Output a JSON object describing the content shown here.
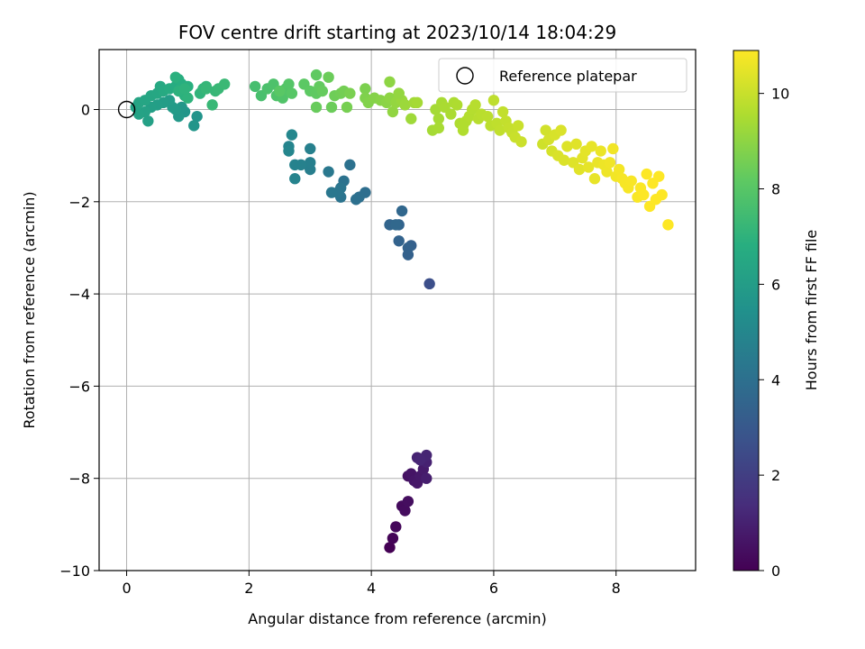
{
  "chart_data": {
    "type": "scatter",
    "title": "FOV centre drift starting at 2023/10/14 18:04:29",
    "xlabel": "Angular distance from reference (arcmin)",
    "ylabel": "Rotation from reference (arcmin)",
    "xlim": [
      -0.45,
      9.3
    ],
    "ylim": [
      -10.0,
      1.3
    ],
    "xticks": [
      0,
      2,
      4,
      6,
      8
    ],
    "yticks": [
      -10,
      -8,
      -6,
      -4,
      -2,
      0
    ],
    "xtick_labels": [
      "0",
      "2",
      "4",
      "6",
      "8"
    ],
    "ytick_labels": [
      "−10",
      "−8",
      "−6",
      "−4",
      "−2",
      "0"
    ],
    "grid": true,
    "legend": {
      "position": "upper-right",
      "entries": [
        "Reference platepar"
      ]
    },
    "reference_point": {
      "x": 0.0,
      "y": 0.0
    },
    "colorbar": {
      "label": "Hours from first FF file",
      "range": [
        0,
        10.9
      ],
      "ticks": [
        0,
        2,
        4,
        6,
        8,
        10
      ],
      "tick_labels": [
        "0",
        "2",
        "4",
        "6",
        "8",
        "10"
      ],
      "colormap": "viridis"
    },
    "series": [
      {
        "points": [
          [
            4.3,
            -9.5,
            0.0
          ],
          [
            4.35,
            -9.3,
            0.1
          ],
          [
            4.4,
            -9.05,
            0.2
          ],
          [
            4.5,
            -8.6,
            0.3
          ],
          [
            4.55,
            -8.7,
            0.35
          ],
          [
            4.6,
            -8.5,
            0.4
          ],
          [
            4.6,
            -7.95,
            0.5
          ],
          [
            4.65,
            -7.9,
            0.6
          ],
          [
            4.7,
            -8.05,
            0.65
          ],
          [
            4.75,
            -8.1,
            0.7
          ],
          [
            4.8,
            -7.95,
            0.75
          ],
          [
            4.85,
            -7.8,
            0.8
          ],
          [
            4.9,
            -8.0,
            0.9
          ],
          [
            4.9,
            -7.65,
            1.0
          ],
          [
            4.75,
            -7.55,
            1.05
          ],
          [
            4.9,
            -7.5,
            1.1
          ],
          [
            4.8,
            -7.6,
            1.15
          ],
          [
            4.95,
            -3.78,
            2.6
          ],
          [
            4.65,
            -2.95,
            3.3
          ],
          [
            4.6,
            -3.15,
            3.35
          ],
          [
            4.6,
            -3.0,
            3.4
          ],
          [
            4.45,
            -2.85,
            3.45
          ],
          [
            4.45,
            -2.5,
            3.5
          ],
          [
            4.3,
            -2.5,
            3.55
          ],
          [
            4.5,
            -2.2,
            3.6
          ],
          [
            4.4,
            -2.5,
            3.65
          ],
          [
            3.9,
            -1.8,
            3.9
          ],
          [
            3.8,
            -1.9,
            3.95
          ],
          [
            3.75,
            -1.95,
            4.0
          ],
          [
            3.65,
            -1.2,
            4.05
          ],
          [
            3.55,
            -1.55,
            4.1
          ],
          [
            3.5,
            -1.9,
            4.15
          ],
          [
            3.5,
            -1.7,
            4.2
          ],
          [
            3.45,
            -1.8,
            4.25
          ],
          [
            3.35,
            -1.8,
            4.3
          ],
          [
            3.3,
            -1.35,
            4.35
          ],
          [
            3.0,
            -1.3,
            4.6
          ],
          [
            3.0,
            -1.15,
            4.65
          ],
          [
            3.0,
            -0.85,
            4.7
          ],
          [
            2.85,
            -1.2,
            4.75
          ],
          [
            2.75,
            -1.2,
            4.8
          ],
          [
            2.75,
            -1.5,
            4.85
          ],
          [
            2.65,
            -0.8,
            4.9
          ],
          [
            2.65,
            -0.9,
            4.95
          ],
          [
            2.7,
            -0.55,
            5.0
          ],
          [
            1.15,
            -0.15,
            5.6
          ],
          [
            1.1,
            -0.35,
            5.65
          ],
          [
            0.95,
            -0.05,
            5.7
          ],
          [
            0.9,
            0.05,
            5.75
          ],
          [
            0.85,
            -0.15,
            5.8
          ],
          [
            0.8,
            0.0,
            5.85
          ],
          [
            0.75,
            0.05,
            5.9
          ],
          [
            0.7,
            0.2,
            5.95
          ],
          [
            0.6,
            0.15,
            6.0
          ],
          [
            0.5,
            0.1,
            6.05
          ],
          [
            0.4,
            0.05,
            6.1
          ],
          [
            0.35,
            -0.25,
            6.15
          ],
          [
            0.3,
            -0.05,
            6.2
          ],
          [
            0.2,
            -0.1,
            6.25
          ],
          [
            0.15,
            0.05,
            6.3
          ],
          [
            0.2,
            0.15,
            6.35
          ],
          [
            0.3,
            0.2,
            6.4
          ],
          [
            0.4,
            0.3,
            6.45
          ],
          [
            0.5,
            0.35,
            6.5
          ],
          [
            0.55,
            0.5,
            6.55
          ],
          [
            0.6,
            0.4,
            6.6
          ],
          [
            0.7,
            0.45,
            6.65
          ],
          [
            0.8,
            0.5,
            6.7
          ],
          [
            0.85,
            0.65,
            6.75
          ],
          [
            0.9,
            0.55,
            6.8
          ],
          [
            1.0,
            0.5,
            6.85
          ],
          [
            0.95,
            0.3,
            6.9
          ],
          [
            0.85,
            0.4,
            6.95
          ],
          [
            1.0,
            0.25,
            7.0
          ],
          [
            1.2,
            0.35,
            7.05
          ],
          [
            1.25,
            0.45,
            7.1
          ],
          [
            1.3,
            0.5,
            7.15
          ],
          [
            1.45,
            0.4,
            7.2
          ],
          [
            1.5,
            0.45,
            7.25
          ],
          [
            1.6,
            0.55,
            7.3
          ],
          [
            1.4,
            0.1,
            7.25
          ],
          [
            1.3,
            0.45,
            7.2
          ],
          [
            0.95,
            0.45,
            7.0
          ],
          [
            0.8,
            0.7,
            6.9
          ],
          [
            2.1,
            0.5,
            7.6
          ],
          [
            2.2,
            0.3,
            7.65
          ],
          [
            2.3,
            0.45,
            7.7
          ],
          [
            2.4,
            0.55,
            7.75
          ],
          [
            2.45,
            0.3,
            7.8
          ],
          [
            2.55,
            0.25,
            7.85
          ],
          [
            2.6,
            0.45,
            7.9
          ],
          [
            2.65,
            0.55,
            7.95
          ],
          [
            2.7,
            0.35,
            8.0
          ],
          [
            2.5,
            0.4,
            8.05
          ],
          [
            2.9,
            0.55,
            8.1
          ],
          [
            3.0,
            0.4,
            8.15
          ],
          [
            3.1,
            0.35,
            8.2
          ],
          [
            3.15,
            0.5,
            8.25
          ],
          [
            3.2,
            0.4,
            8.3
          ],
          [
            3.1,
            0.05,
            8.35
          ],
          [
            3.35,
            0.05,
            8.4
          ],
          [
            3.4,
            0.3,
            8.45
          ],
          [
            3.5,
            0.35,
            8.5
          ],
          [
            3.55,
            0.4,
            8.55
          ],
          [
            3.6,
            0.05,
            8.6
          ],
          [
            3.65,
            0.35,
            8.65
          ],
          [
            3.9,
            0.45,
            8.7
          ],
          [
            3.9,
            0.25,
            8.75
          ],
          [
            3.95,
            0.15,
            8.8
          ],
          [
            4.05,
            0.25,
            8.85
          ],
          [
            4.15,
            0.2,
            8.9
          ],
          [
            4.25,
            0.15,
            8.95
          ],
          [
            4.3,
            0.25,
            9.0
          ],
          [
            4.35,
            -0.05,
            9.05
          ],
          [
            4.4,
            0.15,
            9.1
          ],
          [
            4.45,
            0.35,
            9.15
          ],
          [
            4.5,
            0.2,
            9.2
          ],
          [
            4.55,
            0.1,
            9.25
          ],
          [
            4.65,
            -0.2,
            9.3
          ],
          [
            4.7,
            0.15,
            9.35
          ],
          [
            4.75,
            0.15,
            9.4
          ],
          [
            3.1,
            0.75,
            8.2
          ],
          [
            3.3,
            0.7,
            8.4
          ],
          [
            4.3,
            0.6,
            9.0
          ],
          [
            4.45,
            0.35,
            9.1
          ],
          [
            5.05,
            0.0,
            9.4
          ],
          [
            5.1,
            -0.2,
            9.42
          ],
          [
            5.15,
            0.15,
            9.45
          ],
          [
            5.2,
            0.05,
            9.48
          ],
          [
            5.3,
            -0.1,
            9.5
          ],
          [
            5.35,
            0.15,
            9.52
          ],
          [
            5.4,
            0.1,
            9.55
          ],
          [
            5.45,
            -0.3,
            9.58
          ],
          [
            5.5,
            -0.45,
            9.6
          ],
          [
            5.55,
            -0.25,
            9.62
          ],
          [
            5.6,
            -0.15,
            9.65
          ],
          [
            5.65,
            0.0,
            9.68
          ],
          [
            5.7,
            0.1,
            9.7
          ],
          [
            5.75,
            -0.2,
            9.72
          ],
          [
            5.8,
            -0.1,
            9.75
          ],
          [
            5.9,
            -0.15,
            9.78
          ],
          [
            5.95,
            -0.35,
            9.8
          ],
          [
            6.0,
            0.2,
            9.82
          ],
          [
            6.05,
            -0.3,
            9.85
          ],
          [
            6.1,
            -0.45,
            9.87
          ],
          [
            6.15,
            -0.05,
            9.9
          ],
          [
            6.2,
            -0.25,
            9.92
          ],
          [
            6.25,
            -0.4,
            9.95
          ],
          [
            6.3,
            -0.5,
            9.97
          ],
          [
            6.35,
            -0.6,
            10.0
          ],
          [
            6.4,
            -0.35,
            10.02
          ],
          [
            6.45,
            -0.7,
            10.05
          ],
          [
            5.0,
            -0.45,
            9.4
          ],
          [
            5.1,
            -0.4,
            9.45
          ],
          [
            5.5,
            -0.35,
            9.6
          ],
          [
            6.8,
            -0.75,
            10.1
          ],
          [
            6.85,
            -0.45,
            10.15
          ],
          [
            6.9,
            -0.65,
            10.2
          ],
          [
            6.95,
            -0.9,
            10.22
          ],
          [
            7.0,
            -0.55,
            10.25
          ],
          [
            7.05,
            -1.0,
            10.28
          ],
          [
            7.1,
            -0.45,
            10.3
          ],
          [
            7.15,
            -1.1,
            10.32
          ],
          [
            7.2,
            -0.8,
            10.35
          ],
          [
            7.3,
            -1.15,
            10.38
          ],
          [
            7.35,
            -0.75,
            10.4
          ],
          [
            7.4,
            -1.3,
            10.42
          ],
          [
            7.45,
            -1.05,
            10.45
          ],
          [
            7.5,
            -0.9,
            10.48
          ],
          [
            7.55,
            -1.25,
            10.5
          ],
          [
            7.6,
            -0.8,
            10.52
          ],
          [
            7.65,
            -1.5,
            10.55
          ],
          [
            7.7,
            -1.15,
            10.58
          ],
          [
            7.75,
            -0.9,
            10.6
          ],
          [
            7.8,
            -1.2,
            10.62
          ],
          [
            7.85,
            -1.35,
            10.65
          ],
          [
            7.9,
            -1.15,
            10.68
          ],
          [
            7.95,
            -0.85,
            10.7
          ],
          [
            8.0,
            -1.45,
            10.72
          ],
          [
            8.05,
            -1.3,
            10.75
          ],
          [
            8.1,
            -1.5,
            10.78
          ],
          [
            8.15,
            -1.6,
            10.8
          ],
          [
            8.2,
            -1.7,
            10.8
          ],
          [
            8.25,
            -1.55,
            10.82
          ],
          [
            8.35,
            -1.9,
            10.84
          ],
          [
            8.4,
            -1.7,
            10.86
          ],
          [
            8.45,
            -1.85,
            10.88
          ],
          [
            8.5,
            -1.4,
            10.88
          ],
          [
            8.55,
            -2.1,
            10.9
          ],
          [
            8.6,
            -1.6,
            10.9
          ],
          [
            8.65,
            -1.95,
            10.9
          ],
          [
            8.7,
            -1.45,
            10.9
          ],
          [
            8.75,
            -1.85,
            10.9
          ],
          [
            8.85,
            -2.5,
            10.9
          ]
        ]
      }
    ]
  }
}
